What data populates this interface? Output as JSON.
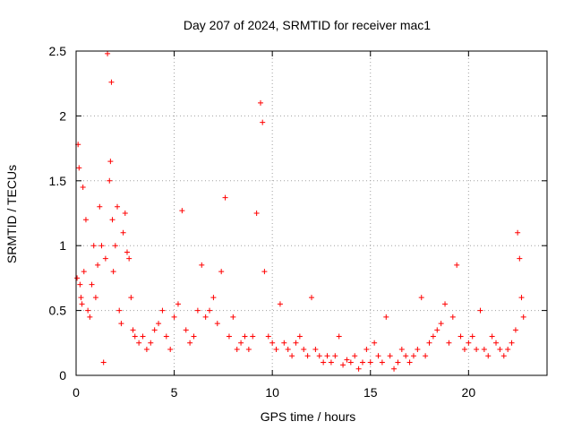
{
  "chart_data": {
    "type": "scatter",
    "title": "Day 207 of 2024, SRMTID for receiver mac1",
    "xlabel": "GPS time / hours",
    "ylabel": "SRMTID / TECUs",
    "xlim": [
      0,
      24
    ],
    "ylim": [
      0,
      2.5
    ],
    "xticks": [
      0,
      5,
      10,
      15,
      20
    ],
    "xtick_labels": [
      "0",
      "5",
      "10",
      "15",
      "20"
    ],
    "yticks": [
      0,
      0.5,
      1,
      1.5,
      2,
      2.5
    ],
    "ytick_labels": [
      "0",
      "0.5",
      "1",
      "1.5",
      "2",
      "2.5"
    ],
    "grid": true,
    "marker": "+",
    "color": "#ff0000",
    "series": [
      {
        "name": "SRMTID",
        "x": [
          0.05,
          0.1,
          0.15,
          0.2,
          0.25,
          0.3,
          0.35,
          0.4,
          0.5,
          0.6,
          0.7,
          0.8,
          0.9,
          1.0,
          1.1,
          1.2,
          1.3,
          1.4,
          1.5,
          1.6,
          1.7,
          1.75,
          1.8,
          1.85,
          1.9,
          2.0,
          2.1,
          2.2,
          2.3,
          2.4,
          2.5,
          2.6,
          2.7,
          2.8,
          2.9,
          3.0,
          3.2,
          3.4,
          3.6,
          3.8,
          4.0,
          4.2,
          4.4,
          4.6,
          4.8,
          5.0,
          5.2,
          5.4,
          5.6,
          5.8,
          6.0,
          6.2,
          6.4,
          6.6,
          6.8,
          7.0,
          7.2,
          7.4,
          7.6,
          7.8,
          8.0,
          8.2,
          8.4,
          8.6,
          8.8,
          9.0,
          9.2,
          9.4,
          9.5,
          9.6,
          9.8,
          10.0,
          10.2,
          10.4,
          10.6,
          10.8,
          11.0,
          11.2,
          11.4,
          11.6,
          11.8,
          12.0,
          12.2,
          12.4,
          12.6,
          12.8,
          13.0,
          13.2,
          13.4,
          13.6,
          13.8,
          14.0,
          14.2,
          14.4,
          14.6,
          14.8,
          15.0,
          15.2,
          15.4,
          15.6,
          15.8,
          16.0,
          16.2,
          16.4,
          16.6,
          16.8,
          17.0,
          17.2,
          17.4,
          17.6,
          17.8,
          18.0,
          18.2,
          18.4,
          18.6,
          18.8,
          19.0,
          19.2,
          19.4,
          19.6,
          19.8,
          20.0,
          20.2,
          20.4,
          20.6,
          20.8,
          21.0,
          21.2,
          21.4,
          21.6,
          21.8,
          22.0,
          22.2,
          22.4,
          22.5,
          22.6,
          22.7,
          22.8
        ],
        "y": [
          0.75,
          1.78,
          1.6,
          0.7,
          0.6,
          0.55,
          1.45,
          0.8,
          1.2,
          0.5,
          0.45,
          0.7,
          1.0,
          0.6,
          0.85,
          1.3,
          1.0,
          0.1,
          0.9,
          2.48,
          1.5,
          1.65,
          2.26,
          1.2,
          0.8,
          1.0,
          1.3,
          0.5,
          0.4,
          1.1,
          1.25,
          0.95,
          0.9,
          0.6,
          0.35,
          0.3,
          0.25,
          0.3,
          0.2,
          0.25,
          0.35,
          0.4,
          0.5,
          0.3,
          0.2,
          0.45,
          0.55,
          1.27,
          0.35,
          0.25,
          0.3,
          0.5,
          0.85,
          0.45,
          0.5,
          0.6,
          0.4,
          0.8,
          1.37,
          0.3,
          0.45,
          0.2,
          0.25,
          0.3,
          0.2,
          0.3,
          1.25,
          2.1,
          1.95,
          0.8,
          0.3,
          0.25,
          0.2,
          0.55,
          0.25,
          0.2,
          0.15,
          0.25,
          0.3,
          0.2,
          0.15,
          0.6,
          0.2,
          0.15,
          0.1,
          0.15,
          0.1,
          0.15,
          0.3,
          0.08,
          0.12,
          0.1,
          0.15,
          0.05,
          0.1,
          0.2,
          0.1,
          0.25,
          0.15,
          0.1,
          0.45,
          0.15,
          0.05,
          0.1,
          0.2,
          0.15,
          0.1,
          0.15,
          0.2,
          0.6,
          0.15,
          0.25,
          0.3,
          0.35,
          0.4,
          0.55,
          0.25,
          0.45,
          0.85,
          0.3,
          0.2,
          0.25,
          0.3,
          0.2,
          0.5,
          0.2,
          0.15,
          0.3,
          0.25,
          0.2,
          0.15,
          0.2,
          0.25,
          0.35,
          1.1,
          0.9,
          0.6,
          0.45
        ]
      }
    ]
  }
}
